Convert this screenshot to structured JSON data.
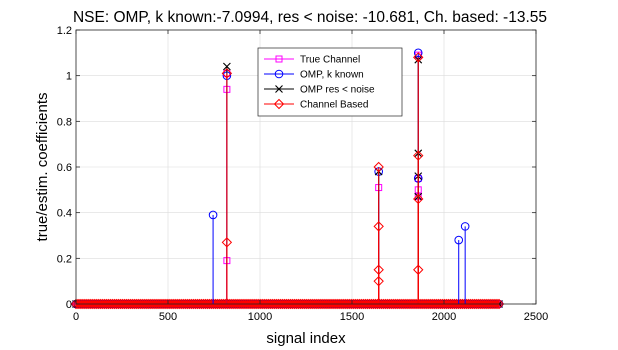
{
  "chart_data": {
    "type": "stem",
    "title": "NSE: OMP, k known:-7.0994, res < noise: -10.681, Ch. based: -13.55",
    "xlabel": "signal index",
    "ylabel": "true/estim. coefficients",
    "xlim": [
      0,
      2500
    ],
    "ylim": [
      0,
      1.2
    ],
    "xticks": [
      0,
      500,
      1000,
      1500,
      2000,
      2500
    ],
    "yticks": [
      0,
      0.2,
      0.4,
      0.6,
      0.8,
      1,
      1.2
    ],
    "xtick_labels": [
      "0",
      "500",
      "1000",
      "1500",
      "2000",
      "2500"
    ],
    "ytick_labels": [
      "0",
      "0.2",
      "0.4",
      "0.6",
      "0.8",
      "1",
      "1.2"
    ],
    "grid": true,
    "legend_position": "top-center",
    "zero_baseline_range": [
      0,
      2300
    ],
    "series": [
      {
        "name": "True Channel",
        "color": "#ff00ff",
        "marker": "square",
        "points": [
          [
            820,
            0.19
          ],
          [
            820,
            0.94
          ],
          [
            820,
            1.01
          ],
          [
            1645,
            0.51
          ],
          [
            1860,
            0.47
          ],
          [
            1860,
            0.5
          ],
          [
            1860,
            0.55
          ],
          [
            1860,
            1.09
          ]
        ]
      },
      {
        "name": "OMP, k known",
        "color": "#0000ff",
        "marker": "circle",
        "points": [
          [
            745,
            0.39
          ],
          [
            820,
            1.0
          ],
          [
            1645,
            0.58
          ],
          [
            1860,
            0.55
          ],
          [
            1860,
            1.1
          ],
          [
            2080,
            0.28
          ],
          [
            2115,
            0.34
          ]
        ]
      },
      {
        "name": "OMP res < noise",
        "color": "#000000",
        "marker": "x",
        "points": [
          [
            820,
            1.04
          ],
          [
            1645,
            0.58
          ],
          [
            1860,
            0.47
          ],
          [
            1860,
            0.56
          ],
          [
            1860,
            0.66
          ],
          [
            1860,
            1.07
          ]
        ]
      },
      {
        "name": "Channel Based",
        "color": "#ff0000",
        "marker": "diamond",
        "points": [
          [
            820,
            0.27
          ],
          [
            820,
            1.01
          ],
          [
            1645,
            0.1
          ],
          [
            1645,
            0.15
          ],
          [
            1645,
            0.34
          ],
          [
            1645,
            0.6
          ],
          [
            1860,
            0.15
          ],
          [
            1860,
            0.46
          ],
          [
            1860,
            0.65
          ],
          [
            1860,
            1.08
          ]
        ]
      }
    ]
  }
}
